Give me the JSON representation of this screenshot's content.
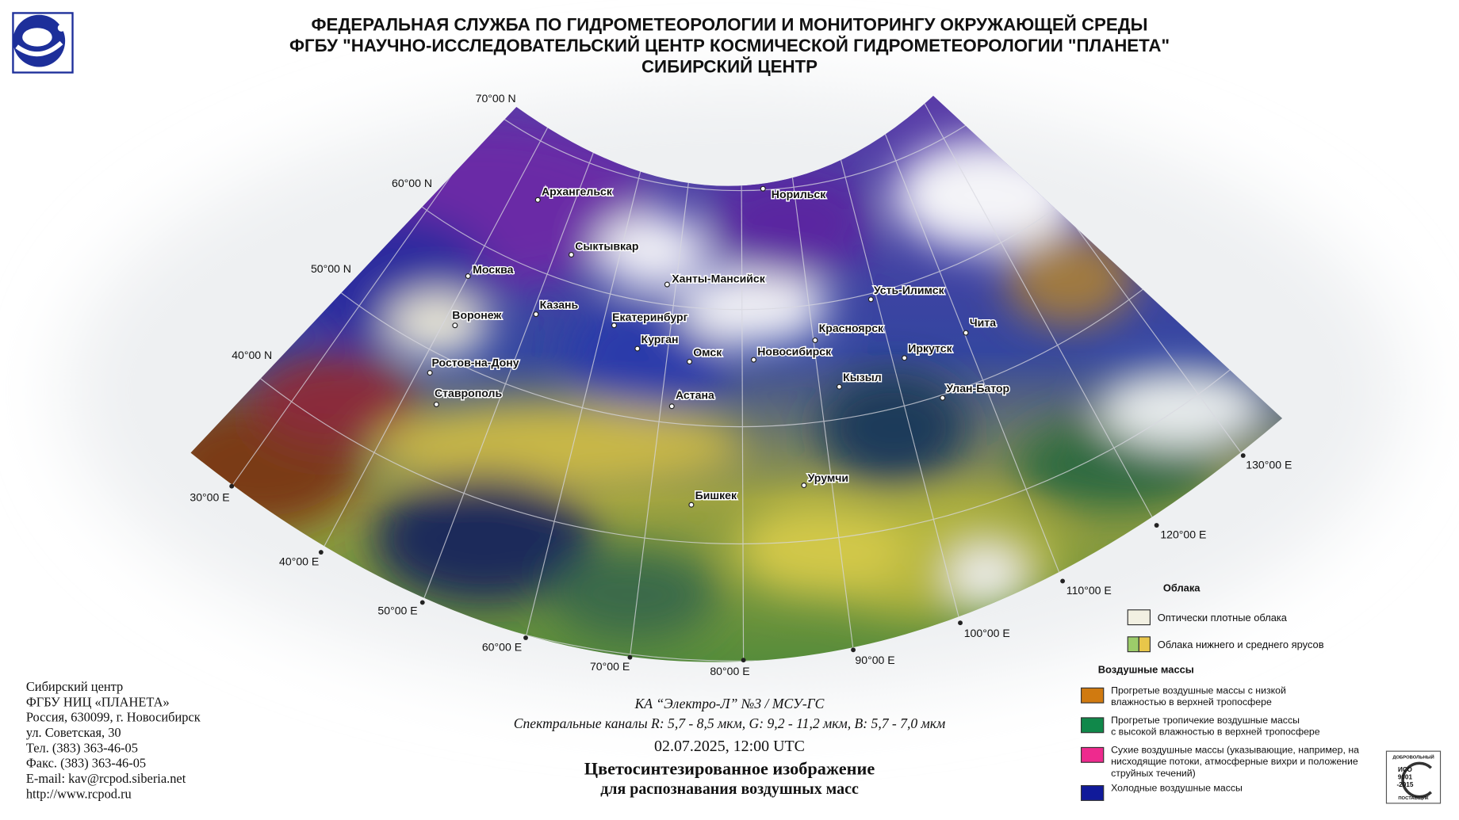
{
  "header": {
    "lines": [
      "ФЕДЕРАЛЬНАЯ СЛУЖБА ПО ГИДРОМЕТЕОРОЛОГИИ И МОНИТОРИНГУ ОКРУЖАЮЩЕЙ СРЕДЫ",
      "ФГБУ \"НАУЧНО-ИССЛЕДОВАТЕЛЬСКИЙ ЦЕНТР КОСМИЧЕСКОЙ ГИДРОМЕТЕОРОЛОГИИ \"ПЛАНЕТА\"",
      "СИБИРСКИЙ ЦЕНТР"
    ]
  },
  "map": {
    "latitude_labels": [
      "70°00 N",
      "60°00 N",
      "50°00 N",
      "40°00 N"
    ],
    "longitude_labels": [
      "30°00 E",
      "40°00 E",
      "50°00 E",
      "60°00 E",
      "70°00 E",
      "80°00 E",
      "90°00 E",
      "100°00 E",
      "110°00 E",
      "120°00 E",
      "130°00 E"
    ],
    "cities": [
      "Архангельск",
      "Норильск",
      "Сыктывкар",
      "Москва",
      "Ханты-Мансийск",
      "Казань",
      "Усть-Илимск",
      "Воронеж",
      "Екатеринбург",
      "Красноярск",
      "Чита",
      "Курган",
      "Омск",
      "Новосибирск",
      "Иркутск",
      "Ростов-на-Дону",
      "Кызыл",
      "Ставрополь",
      "Улан-Батор",
      "Астана",
      "Урумчи",
      "Бишкек"
    ]
  },
  "legend": {
    "clouds_title": "Облака",
    "clouds": [
      {
        "lines": [
          "Оптически плотные облака"
        ]
      },
      {
        "lines": [
          "Облака нижнего и среднего ярусов"
        ]
      }
    ],
    "air_title": "Воздушные массы",
    "air_masses": [
      {
        "lines": [
          "Прогретые воздушные массы с низкой",
          "влажностью в верхней тропосфере"
        ]
      },
      {
        "lines": [
          "Прогретые тропичекие воздушные массы",
          "с высокой влажностью в верхней тропосфере"
        ]
      },
      {
        "lines": [
          "Сухие воздушные массы (указывающие, например, на",
          "нисходящие потоки, атмосферные вихри и положение",
          "струйных течений)"
        ]
      },
      {
        "lines": [
          "Холодные воздушные массы"
        ]
      }
    ]
  },
  "caption": {
    "satellite": "КА “Электро-Л” №3 / МСУ-ГС",
    "channels": "Спектральные каналы R: 5,7 - 8,5 мкм, G: 9,2 - 11,2 мкм, B: 5,7 - 7,0 мкм",
    "datetime": "02.07.2025, 12:00 UTC",
    "title": "Цветосинтезированное изображение",
    "subtitle": "для распознавания воздушных масс"
  },
  "contact": {
    "lines": [
      "Сибирский центр",
      "ФГБУ НИЦ «ПЛАНЕТА»",
      "Россия, 630099, г. Новосибирск",
      "ул. Советская, 30",
      "Тел. (383) 363-46-05",
      "Факс. (383) 363-46-05",
      "E-mail: kav@rcpod.siberia.net",
      "http://www.rcpod.ru"
    ]
  },
  "iso": {
    "lines": [
      "ДОБРОВОЛЬНЫЙ",
      "ИСО",
      "9001",
      "-2015",
      "ПОСТАВЩИК"
    ]
  }
}
